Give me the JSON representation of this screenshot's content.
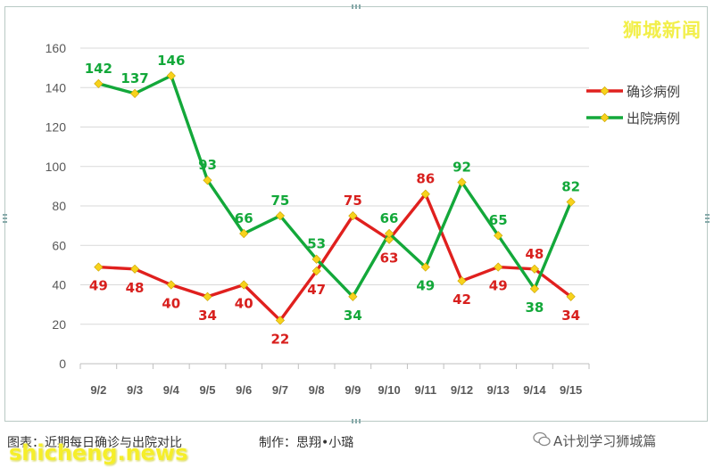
{
  "watermark": "狮城新闻",
  "site_watermark": "shicheng.news",
  "footer": {
    "caption": "图表：近期每日确诊与出院对比",
    "credit": "制作：思翔•小璐",
    "account": "A计划学习狮城篇"
  },
  "colors": {
    "confirmed_line": "#e0201e",
    "confirmed_label": "#d8201e",
    "discharged_line": "#13a83a",
    "discharged_label": "#13a83a",
    "marker_fill": "#f7d21c",
    "axis_text": "#595959",
    "grid": "#d9d9d9"
  },
  "chart_data": {
    "type": "line",
    "categories": [
      "9/2",
      "9/3",
      "9/4",
      "9/5",
      "9/6",
      "9/7",
      "9/8",
      "9/9",
      "9/10",
      "9/11",
      "9/12",
      "9/13",
      "9/14",
      "9/15"
    ],
    "ylim": [
      0,
      160
    ],
    "yticks": [
      0,
      20,
      40,
      60,
      80,
      100,
      120,
      140,
      160
    ],
    "legend_position": "right",
    "series": [
      {
        "name": "确诊病例",
        "key": "confirmed",
        "values": [
          49,
          48,
          40,
          34,
          40,
          22,
          47,
          75,
          63,
          86,
          42,
          49,
          48,
          34
        ]
      },
      {
        "name": "出院病例",
        "key": "discharged",
        "values": [
          142,
          137,
          146,
          93,
          66,
          75,
          53,
          34,
          66,
          49,
          92,
          65,
          38,
          82
        ]
      }
    ]
  }
}
